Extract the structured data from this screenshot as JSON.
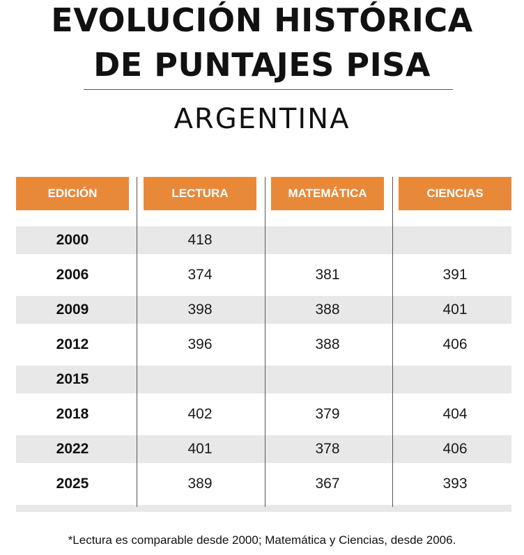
{
  "title_line1": "EVOLUCIÓN HISTÓRICA",
  "title_line2": "DE PUNTAJES PISA",
  "subtitle": "ARGENTINA",
  "footnote": "*Lectura es comparable desde 2000; Matemática y Ciencias, desde 2006.",
  "colors": {
    "header": "#e8893a",
    "band": "#e8e8e8",
    "text": "#111111"
  },
  "chart_data": {
    "type": "table",
    "title": "EVOLUCIÓN HISTÓRICA DE PUNTAJES PISA",
    "subtitle": "ARGENTINA",
    "columns": [
      "EDICIÓN",
      "LECTURA",
      "MATEMÁTICA",
      "CIENCIAS"
    ],
    "rows": [
      [
        "2000",
        "418",
        "",
        ""
      ],
      [
        "2006",
        "374",
        "381",
        "391"
      ],
      [
        "2009",
        "398",
        "388",
        "401"
      ],
      [
        "2012",
        "396",
        "388",
        "406"
      ],
      [
        "2015",
        "",
        "",
        ""
      ],
      [
        "2018",
        "402",
        "379",
        "404"
      ],
      [
        "2022",
        "401",
        "378",
        "406"
      ],
      [
        "2025",
        "389",
        "367",
        "393"
      ]
    ]
  }
}
